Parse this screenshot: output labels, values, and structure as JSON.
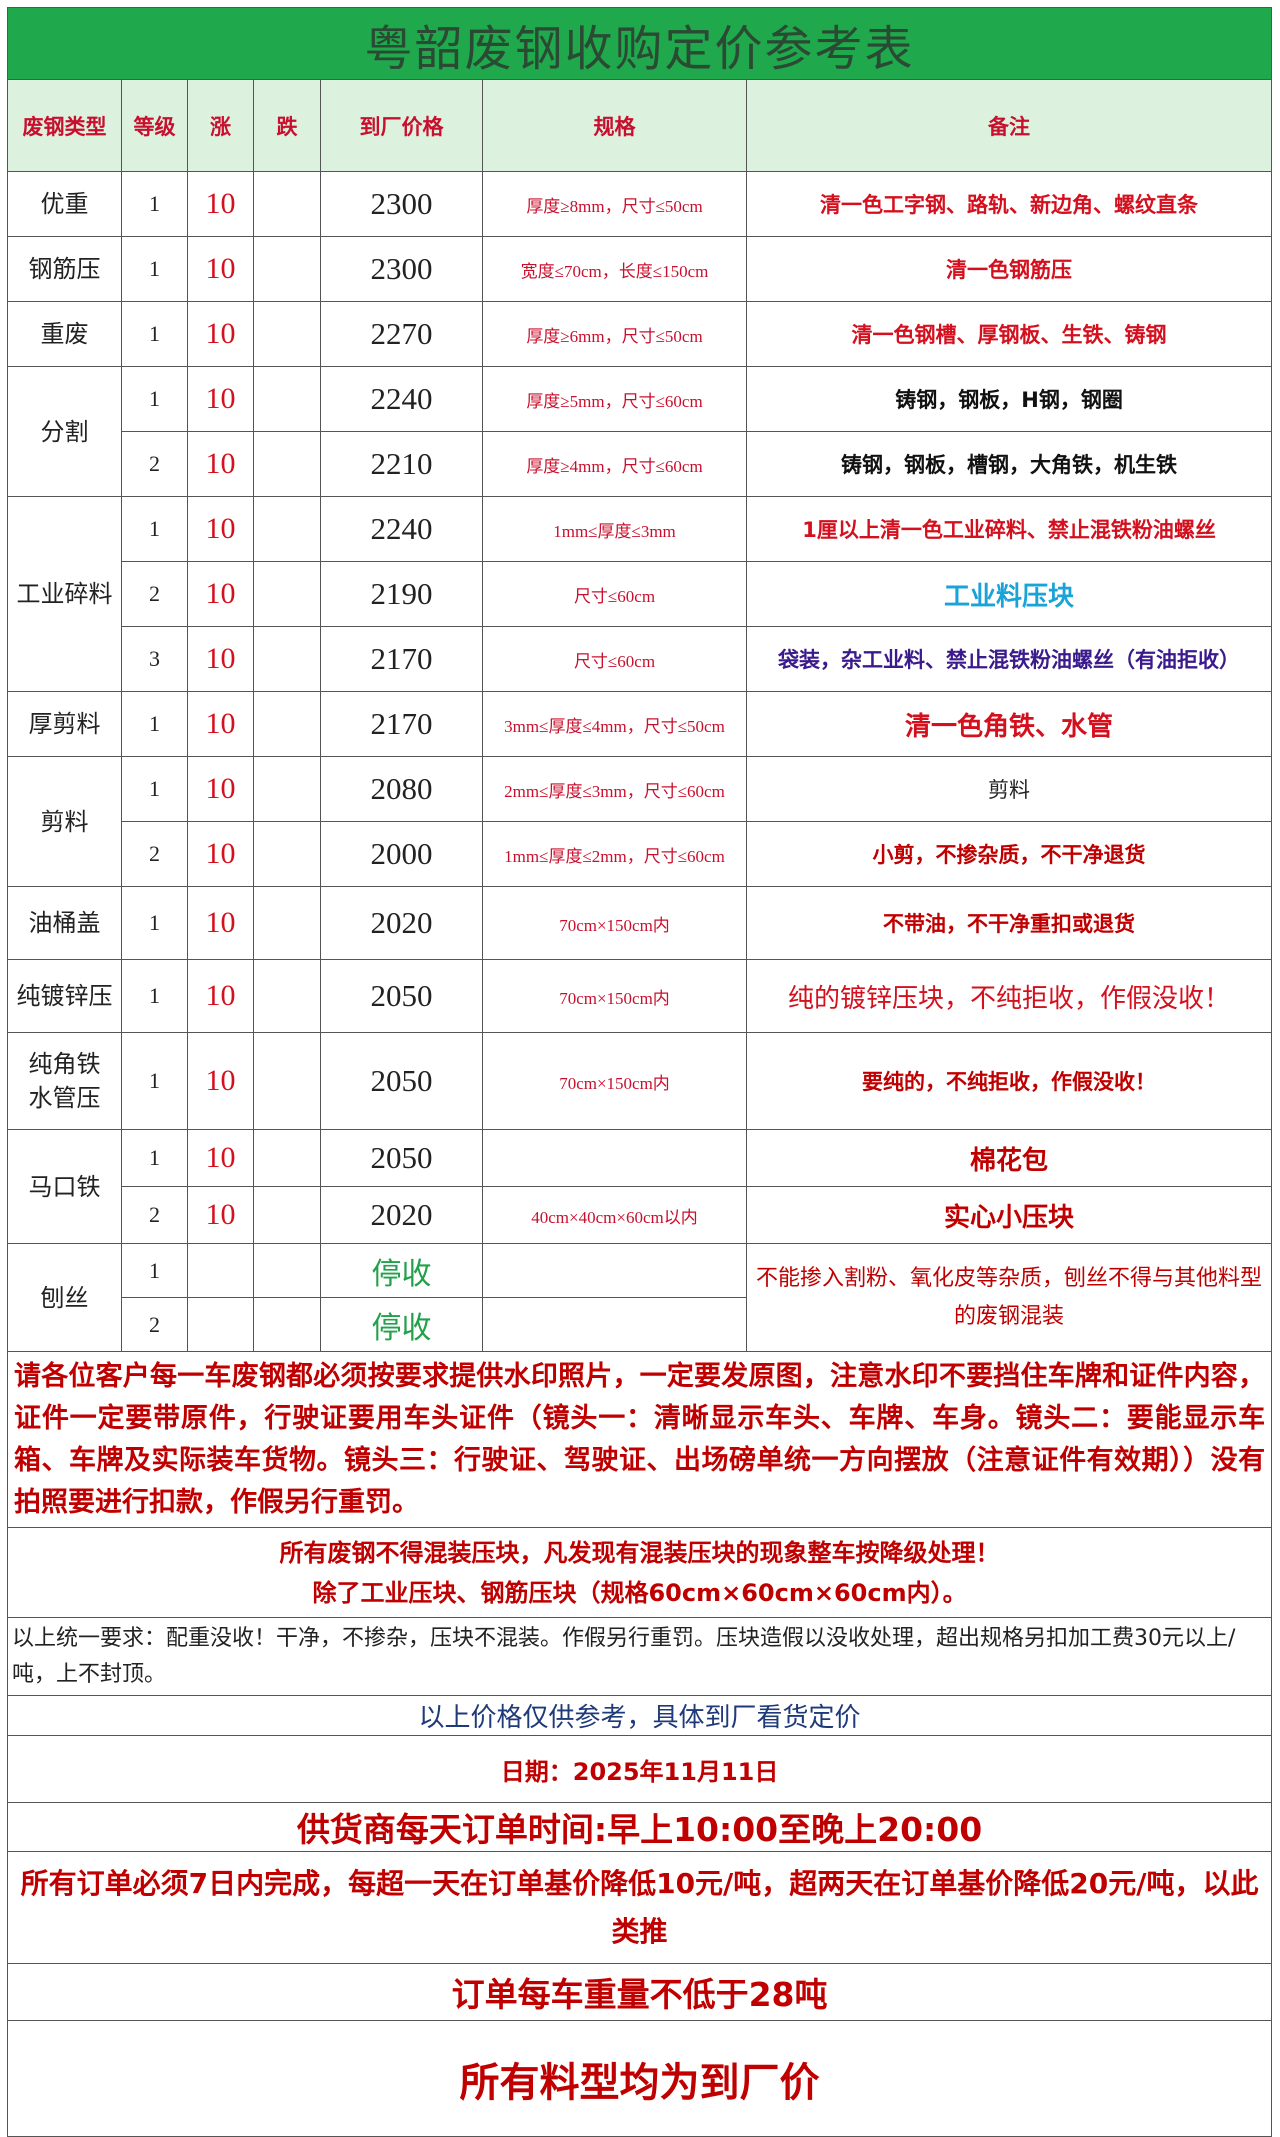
{
  "title": "粤韶废钢收购定价参考表",
  "headers": [
    "废钢类型",
    "等级",
    "涨",
    "跌",
    "到厂价格",
    "规格",
    "备注"
  ],
  "colors": {
    "title_bg": "#1fa84c",
    "header_bg": "#dcf1de",
    "red": "#c8102e",
    "green": "#22a04a",
    "blue": "#1aa3d8",
    "purple": "#3b1a8c"
  },
  "groups": [
    {
      "category": "优重",
      "rows": [
        {
          "grade": "1",
          "up": "10",
          "down": "",
          "price": "2300",
          "spec": "厚度≥8mm，尺寸≤50cm",
          "note": "清一色工字钢、路轨、新边角、螺纹直条",
          "note_color": "#d4101e"
        }
      ]
    },
    {
      "category": "钢筋压",
      "rows": [
        {
          "grade": "1",
          "up": "10",
          "down": "",
          "price": "2300",
          "spec": "宽度≤70cm，长度≤150cm",
          "note": "清一色钢筋压",
          "note_color": "#d4101e"
        }
      ]
    },
    {
      "category": "重废",
      "rows": [
        {
          "grade": "1",
          "up": "10",
          "down": "",
          "price": "2270",
          "spec": "厚度≥6mm，尺寸≤50cm",
          "note": "清一色钢槽、厚钢板、生铁、铸钢",
          "note_color": "#d4101e"
        }
      ]
    },
    {
      "category": "分割",
      "rows": [
        {
          "grade": "1",
          "up": "10",
          "down": "",
          "price": "2240",
          "spec": "厚度≥5mm，尺寸≤60cm",
          "note": "铸钢，钢板，H钢，钢圈",
          "note_color": "#111111"
        },
        {
          "grade": "2",
          "up": "10",
          "down": "",
          "price": "2210",
          "spec": "厚度≥4mm，尺寸≤60cm",
          "note": "铸钢，钢板，槽钢，大角铁，机生铁",
          "note_color": "#111111"
        }
      ]
    },
    {
      "category": "工业碎料",
      "rows": [
        {
          "grade": "1",
          "up": "10",
          "down": "",
          "price": "2240",
          "spec": "1mm≤厚度≤3mm",
          "note": "1厘以上清一色工业碎料、禁止混铁粉油螺丝",
          "note_color": "#d4101e"
        },
        {
          "grade": "2",
          "up": "10",
          "down": "",
          "price": "2190",
          "spec": "尺寸≤60cm",
          "note": "工业料压块",
          "note_color": "#1aa3d8",
          "note_big": true
        },
        {
          "grade": "3",
          "up": "10",
          "down": "",
          "price": "2170",
          "spec": "尺寸≤60cm",
          "note": "袋装，杂工业料、禁止混铁粉油螺丝（有油拒收）",
          "note_color": "#3b1a8c"
        }
      ]
    },
    {
      "category": "厚剪料",
      "rows": [
        {
          "grade": "1",
          "up": "10",
          "down": "",
          "price": "2170",
          "spec": "3mm≤厚度≤4mm，尺寸≤50cm",
          "note": "清一色角铁、水管",
          "note_color": "#d4101e",
          "note_big": true
        }
      ]
    },
    {
      "category": "剪料",
      "rows": [
        {
          "grade": "1",
          "up": "10",
          "down": "",
          "price": "2080",
          "spec": "2mm≤厚度≤3mm，尺寸≤60cm",
          "note": "剪料",
          "note_color": "#222222",
          "note_plain": true
        },
        {
          "grade": "2",
          "up": "10",
          "down": "",
          "price": "2000",
          "spec": "1mm≤厚度≤2mm，尺寸≤60cm",
          "note": "小剪，不掺杂质，不干净退货",
          "note_color": "#c00000"
        }
      ]
    },
    {
      "category": "油桶盖",
      "rows": [
        {
          "grade": "1",
          "up": "10",
          "down": "",
          "price": "2020",
          "spec": "70cm×150cm内",
          "note": "不带油，不干净重扣或退货",
          "note_color": "#c00000"
        }
      ]
    },
    {
      "category": "纯镀锌压",
      "rows": [
        {
          "grade": "1",
          "up": "10",
          "down": "",
          "price": "2050",
          "spec": "70cm×150cm内",
          "note": "纯的镀锌压块，不纯拒收，作假没收！",
          "note_color": "#d4101e",
          "note_plain": true,
          "note_big": true
        }
      ]
    },
    {
      "category": "纯角铁\n水管压",
      "rows": [
        {
          "grade": "1",
          "up": "10",
          "down": "",
          "price": "2050",
          "spec": "70cm×150cm内",
          "note": "要纯的，不纯拒收，作假没收！",
          "note_color": "#c00000"
        }
      ]
    },
    {
      "category": "马口铁",
      "rows": [
        {
          "grade": "1",
          "up": "10",
          "down": "",
          "price": "2050",
          "spec": "",
          "note": "棉花包",
          "note_color": "#c00000",
          "note_big": true
        },
        {
          "grade": "2",
          "up": "10",
          "down": "",
          "price": "2020",
          "spec": "40cm×40cm×60cm以内",
          "note": "实心小压块",
          "note_color": "#c00000",
          "note_big": true
        }
      ]
    },
    {
      "category": "刨丝",
      "rows": [
        {
          "grade": "1",
          "up": "",
          "down": "",
          "price": "停收",
          "spec": "",
          "note": "不能掺入割粉、氧化皮等杂质，刨丝不得与其他料型的废钢混装",
          "note_color": "#c00000",
          "merged_note": true
        },
        {
          "grade": "2",
          "up": "",
          "down": "",
          "price": "停收",
          "spec": ""
        }
      ]
    }
  ],
  "notices": {
    "photo": "请各位客户每一车废钢都必须按要求提供水印照片，一定要发原图，注意水印不要挡住车牌和证件内容，证件一定要带原件，行驶证要用车头证件（镜头一：清晰显示车头、车牌、车身。镜头二：要能显示车箱、车牌及实际装车货物。镜头三：行驶证、驾驶证、出场磅单统一方向摆放（注意证件有效期））没有拍照要进行扣款，作假另行重罚。",
    "mixed_1": "所有废钢不得混装压块，凡发现有混装压块的现象整车按降级处理！",
    "mixed_2": "除了工业压块、钢筋压块（规格60cm×60cm×60cm内）。",
    "unified": "以上统一要求：配重没收！干净，不掺杂，压块不混装。作假另行重罚。压块造假以没收处理，超出规格另扣加工费30元以上/吨，上不封顶。",
    "reference": "以上价格仅供参考，具体到厂看货定价",
    "date": "日期：2025年11月11日",
    "hours": "供货商每天订单时间:早上10:00至晚上20:00",
    "order": "所有订单必须7日内完成，每超一天在订单基价降低10元/吨，超两天在订单基价降低20元/吨，以此类推",
    "weight": "订单每车重量不低于28吨",
    "final": "所有料型均为到厂价"
  }
}
